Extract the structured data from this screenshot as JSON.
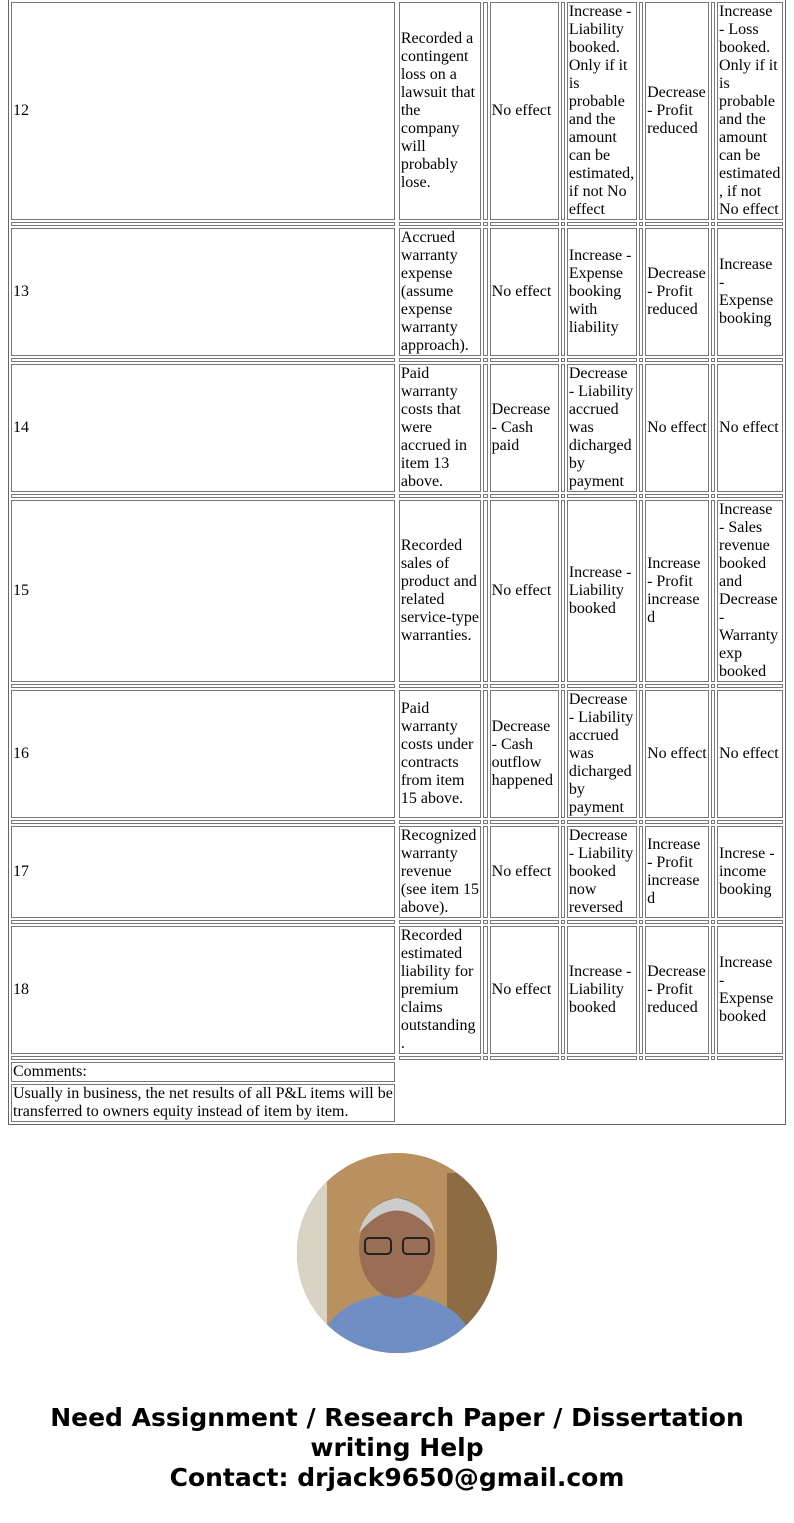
{
  "rows": [
    {
      "num": "12",
      "desc": "Recorded a contingent loss on a lawsuit that the company will probably lose.",
      "c1": "No effect",
      "c2": "Increase - Liability booked. Only if it is probable and the amount can be estimated, if not No effect",
      "c3": "Decrease - Profit reduced",
      "c4": "Increase - Loss booked. Only if it is probable and the amount can be estimated, if not No effect"
    },
    {
      "num": "13",
      "desc": "Accrued warranty expense (assume expense warranty approach).",
      "c1": "No effect",
      "c2": "Increase - Expense booking with liability",
      "c3": "Decrease - Profit reduced",
      "c4": "Increase - Expense booking"
    },
    {
      "num": "14",
      "desc": "Paid warranty costs that were accrued in item 13 above.",
      "c1": "Decrease - Cash paid",
      "c2": "Decrease - Liability accrued was dicharged by payment",
      "c3": "No effect",
      "c4": "No effect"
    },
    {
      "num": "15",
      "desc": "Recorded sales of product and related service-type warranties.",
      "c1": "No effect",
      "c2": "Increase - Liability booked",
      "c3": "Increase - Profit increased",
      "c4": "Increase - Sales revenue booked and Decrease - Warranty exp booked"
    },
    {
      "num": "16",
      "desc": "Paid warranty costs under contracts from item 15 above.",
      "c1": "Decrease - Cash outflow happened",
      "c2": "Decrease - Liability accrued was dicharged by payment",
      "c3": "No effect",
      "c4": "No effect"
    },
    {
      "num": "17",
      "desc": "Recognized warranty revenue (see item 15 above).",
      "c1": "No effect",
      "c2": "Decrease - Liability booked now reversed",
      "c3": "Increase - Profit increased",
      "c4": "Increse - income booking"
    },
    {
      "num": "18",
      "desc": "Recorded estimated liability for premium claims outstanding.",
      "c1": "No effect",
      "c2": "Increase - Liability booked",
      "c3": "Decrease - Profit reduced",
      "c4": "Increase - Expense booked"
    }
  ],
  "comments": {
    "label": "Comments:",
    "text": "Usually in business, the net results of all P&L items will be transferred to owners equity instead of item by item."
  },
  "promo": {
    "line1": "Need Assignment / Research Paper / Dissertation writing Help",
    "line2": "Contact: drjack9650@gmail.com"
  },
  "avatar": {
    "icon": "person-photo"
  }
}
